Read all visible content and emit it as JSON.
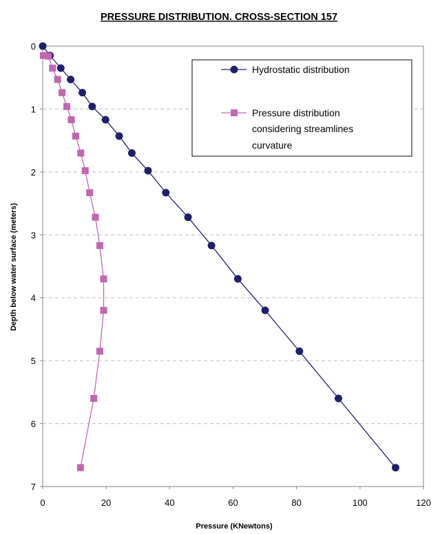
{
  "chart_data": {
    "type": "scatter",
    "title": "PRESSURE DISTRIBUTION.   CROSS-SECTION 157",
    "xlabel": "Pressure (KNewtons)",
    "ylabel": "Depth below water surface (meters)",
    "xlim": [
      0,
      120
    ],
    "ylim": [
      0,
      7
    ],
    "y_inverted": true,
    "x_ticks": [
      "0",
      "20",
      "40",
      "60",
      "80",
      "100",
      "120"
    ],
    "y_ticks": [
      "0",
      "1",
      "2",
      "3",
      "4",
      "5",
      "6",
      "7"
    ],
    "grid": "horizontal dashed",
    "legend_position": "top-right",
    "series": [
      {
        "name": "Hydrostatic distribution",
        "color": "#1f1f6e",
        "marker": "circle",
        "points": [
          [
            0,
            0
          ],
          [
            2.3,
            0.15
          ],
          [
            5.7,
            0.35
          ],
          [
            8.8,
            0.53
          ],
          [
            12.5,
            0.74
          ],
          [
            15.6,
            0.96
          ],
          [
            19.8,
            1.17
          ],
          [
            24.1,
            1.43
          ],
          [
            28.1,
            1.7
          ],
          [
            33.2,
            1.98
          ],
          [
            38.8,
            2.33
          ],
          [
            45.8,
            2.72
          ],
          [
            53.2,
            3.17
          ],
          [
            61.5,
            3.7
          ],
          [
            70.1,
            4.2
          ],
          [
            80.9,
            4.85
          ],
          [
            93.2,
            5.6
          ],
          [
            111.2,
            6.7
          ]
        ]
      },
      {
        "name": "Pressure distribution considering streamlines curvature",
        "legend_lines": [
          "Pressure distribution",
          "considering streamlines",
          "curvature"
        ],
        "color": "#c266b0",
        "marker": "square",
        "points": [
          [
            0.2,
            0.15
          ],
          [
            1.8,
            0.16
          ],
          [
            3.1,
            0.35
          ],
          [
            4.7,
            0.53
          ],
          [
            6.1,
            0.74
          ],
          [
            7.6,
            0.96
          ],
          [
            9.0,
            1.17
          ],
          [
            10.4,
            1.43
          ],
          [
            12.0,
            1.7
          ],
          [
            13.4,
            1.98
          ],
          [
            14.8,
            2.33
          ],
          [
            16.6,
            2.72
          ],
          [
            18.0,
            3.17
          ],
          [
            19.2,
            3.7
          ],
          [
            19.2,
            4.2
          ],
          [
            18.0,
            4.85
          ],
          [
            16.1,
            5.6
          ],
          [
            11.9,
            6.7
          ]
        ]
      }
    ]
  }
}
